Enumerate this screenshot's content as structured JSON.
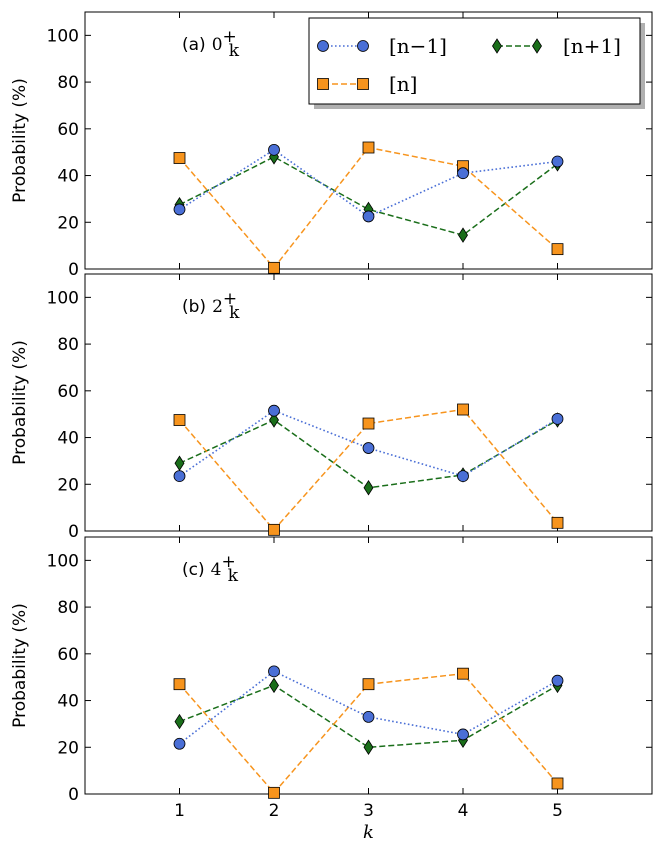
{
  "chart_data": [
    {
      "type": "line",
      "panel_label": "(a)",
      "state": "0",
      "state_sub": "k",
      "state_sup": "+",
      "x": [
        1,
        2,
        3,
        4,
        5
      ],
      "series": [
        {
          "name": "[n−1]",
          "values": [
            25.5,
            51,
            22.5,
            41,
            46
          ],
          "color": "#4a6fd6",
          "marker": "circle",
          "line": "dotted"
        },
        {
          "name": "[n]",
          "values": [
            47.5,
            0.5,
            52,
            44,
            8.5
          ],
          "color": "#f7941d",
          "marker": "square",
          "line": "dashed"
        },
        {
          "name": "[n+1]",
          "values": [
            27.5,
            48,
            25.5,
            14.5,
            45
          ],
          "color": "#1a6e1a",
          "marker": "diamond",
          "line": "dashed"
        }
      ],
      "ylabel": "Probability (%)",
      "ylim": [
        0,
        110
      ],
      "yticks": [
        "0",
        "20",
        "40",
        "60",
        "80",
        "100"
      ],
      "xlim": [
        0,
        6
      ],
      "legend": "top-right"
    },
    {
      "type": "line",
      "panel_label": "(b)",
      "state": "2",
      "state_sub": "k",
      "state_sup": "+",
      "x": [
        1,
        2,
        3,
        4,
        5
      ],
      "series": [
        {
          "name": "[n−1]",
          "values": [
            23.5,
            51.5,
            35.5,
            23.5,
            48
          ],
          "color": "#4a6fd6",
          "marker": "circle",
          "line": "dotted"
        },
        {
          "name": "[n]",
          "values": [
            47.5,
            0.5,
            46,
            52,
            3.5
          ],
          "color": "#f7941d",
          "marker": "square",
          "line": "dashed"
        },
        {
          "name": "[n+1]",
          "values": [
            29,
            47.5,
            18.5,
            24,
            47.5
          ],
          "color": "#1a6e1a",
          "marker": "diamond",
          "line": "dashed"
        }
      ],
      "ylabel": "Probability (%)",
      "ylim": [
        0,
        110
      ],
      "yticks": [
        "0",
        "20",
        "40",
        "60",
        "80",
        "100"
      ],
      "xlim": [
        0,
        6
      ]
    },
    {
      "type": "line",
      "panel_label": "(c)",
      "state": "4",
      "state_sub": "k",
      "state_sup": "+",
      "x": [
        1,
        2,
        3,
        4,
        5
      ],
      "series": [
        {
          "name": "[n−1]",
          "values": [
            21.5,
            52.5,
            33,
            25.5,
            48.5
          ],
          "color": "#4a6fd6",
          "marker": "circle",
          "line": "dotted"
        },
        {
          "name": "[n]",
          "values": [
            47,
            0.5,
            47,
            51.5,
            4.5
          ],
          "color": "#f7941d",
          "marker": "square",
          "line": "dashed"
        },
        {
          "name": "[n+1]",
          "values": [
            31,
            46.5,
            20,
            23,
            46.5
          ],
          "color": "#1a6e1a",
          "marker": "diamond",
          "line": "dashed"
        }
      ],
      "ylabel": "Probability (%)",
      "ylim": [
        0,
        110
      ],
      "yticks": [
        "0",
        "20",
        "40",
        "60",
        "80",
        "100"
      ],
      "xlim": [
        0,
        6
      ],
      "xticks": [
        "1",
        "2",
        "3",
        "4",
        "5"
      ],
      "xlabel": "k"
    }
  ],
  "legend": {
    "entries": [
      {
        "label": "[n−1]",
        "series_index": 0
      },
      {
        "label": "[n+1]",
        "series_index": 2
      },
      {
        "label": "[n]",
        "series_index": 1
      }
    ]
  }
}
